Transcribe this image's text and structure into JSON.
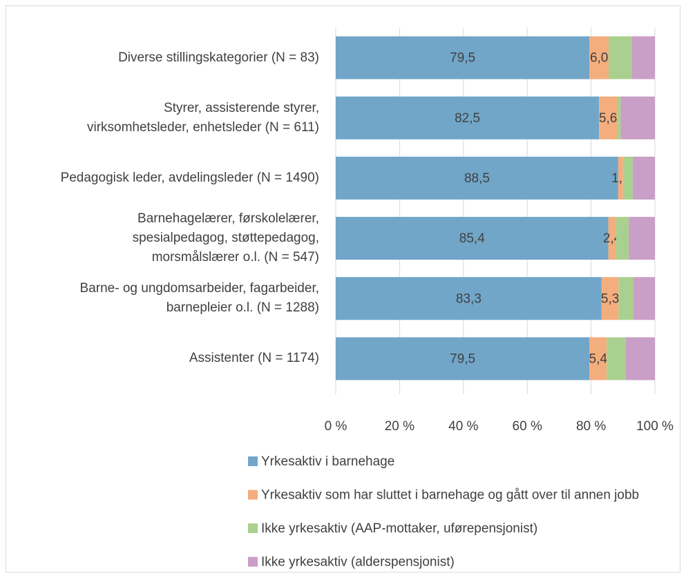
{
  "chart_data": {
    "type": "stacked-barh",
    "categories": [
      "Diverse stillingskategorier (N = 83)",
      "Styrer, assisterende styrer,\nvirksomhetsleder, enhetsleder (N = 611)",
      "Pedagogisk leder, avdelingsleder (N = 1490)",
      "Barnehagelærer, førskolelærer,\nspesialpedagog, støttepedagog,\nmorsmålslærer o.l. (N = 547)",
      "Barne- og ungdomsarbeider, fagarbeider,\nbarnepleier o.l. (N = 1288)",
      "Assistenter (N = 1174)"
    ],
    "series": [
      {
        "name": "Yrkesaktiv i barnehage",
        "color": "#71a6c9",
        "values": [
          79.5,
          82.5,
          88.5,
          85.4,
          83.3,
          79.5
        ],
        "value_labels": [
          "79,5",
          "82,5",
          "88,5",
          "85,4",
          "83,3",
          "79,5"
        ]
      },
      {
        "name": "Yrkesaktiv som har sluttet i barnehage og gått over til annen jobb",
        "color": "#f4ad7d",
        "values": [
          6.0,
          5.6,
          1.5,
          2.4,
          5.3,
          5.4
        ],
        "value_labels": [
          "6,0",
          "5,6",
          "1,5",
          "2,4",
          "5,3",
          "5,4"
        ]
      },
      {
        "name": "Ikke yrkesaktiv (AAP-mottaker, uførepensjonist)",
        "color": "#aad08f",
        "values": [
          7.2,
          1.2,
          3.1,
          4.0,
          4.7,
          6.0
        ]
      },
      {
        "name": "Ikke yrkesaktiv (alderspensjonist)",
        "color": "#c99ec7",
        "values": [
          7.3,
          10.7,
          6.9,
          8.2,
          6.7,
          9.1
        ]
      }
    ],
    "xlim": [
      0,
      100
    ],
    "xticks": [
      {
        "value": 0,
        "label": "0 %"
      },
      {
        "value": 20,
        "label": "20 %"
      },
      {
        "value": 40,
        "label": "40 %"
      },
      {
        "value": 60,
        "label": "60 %"
      },
      {
        "value": 80,
        "label": "80 %"
      },
      {
        "value": 100,
        "label": "100 %"
      }
    ],
    "grid": true,
    "legend": "bottom"
  }
}
